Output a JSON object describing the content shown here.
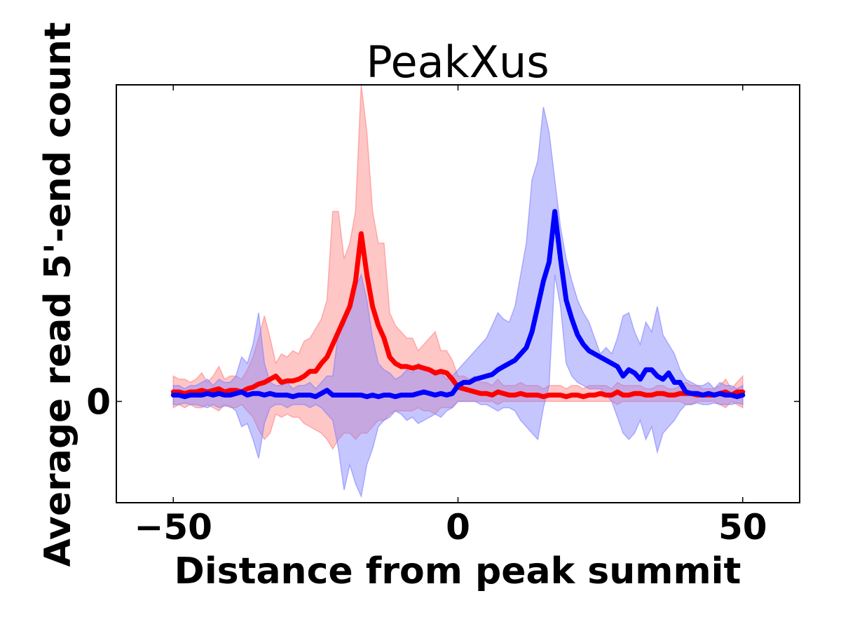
{
  "chart_data": {
    "type": "area",
    "title": "PeakXus",
    "xlabel": "Distance from peak summit",
    "ylabel": "Average read 5'-end count",
    "xlim": [
      -60,
      60
    ],
    "ylim": [
      -0.32,
      1.0
    ],
    "x_ticks": [
      -50,
      0,
      50
    ],
    "x_tick_labels": [
      "−50",
      "0",
      "50"
    ],
    "y_ticks": [
      0
    ],
    "y_tick_labels": [
      "0"
    ],
    "grid": false,
    "x": [
      -50,
      -49,
      -48,
      -47,
      -46,
      -45,
      -44,
      -43,
      -42,
      -41,
      -40,
      -39,
      -38,
      -37,
      -36,
      -35,
      -34,
      -33,
      -32,
      -31,
      -30,
      -29,
      -28,
      -27,
      -26,
      -25,
      -24,
      -23,
      -22,
      -21,
      -20,
      -19,
      -18,
      -17,
      -16,
      -15,
      -14,
      -13,
      -12,
      -11,
      -10,
      -9,
      -8,
      -7,
      -6,
      -5,
      -4,
      -3,
      -2,
      -1,
      0,
      1,
      2,
      3,
      4,
      5,
      6,
      7,
      8,
      9,
      10,
      11,
      12,
      13,
      14,
      15,
      16,
      17,
      18,
      19,
      20,
      21,
      22,
      23,
      24,
      25,
      26,
      27,
      28,
      29,
      30,
      31,
      32,
      33,
      34,
      35,
      36,
      37,
      38,
      39,
      40,
      41,
      42,
      43,
      44,
      45,
      46,
      47,
      48,
      49,
      50
    ],
    "series": [
      {
        "color": "#ff0000",
        "band_color": "#ff8080",
        "values": [
          0.03,
          0.03,
          0.025,
          0.03,
          0.03,
          0.035,
          0.03,
          0.035,
          0.04,
          0.03,
          0.035,
          0.035,
          0.03,
          0.04,
          0.045,
          0.055,
          0.06,
          0.07,
          0.08,
          0.06,
          0.065,
          0.065,
          0.07,
          0.08,
          0.095,
          0.095,
          0.12,
          0.14,
          0.18,
          0.22,
          0.26,
          0.3,
          0.38,
          0.53,
          0.4,
          0.3,
          0.24,
          0.2,
          0.14,
          0.12,
          0.11,
          0.11,
          0.105,
          0.11,
          0.105,
          0.1,
          0.09,
          0.095,
          0.09,
          0.07,
          0.045,
          0.04,
          0.035,
          0.03,
          0.025,
          0.025,
          0.02,
          0.03,
          0.025,
          0.02,
          0.02,
          0.025,
          0.02,
          0.02,
          0.02,
          0.015,
          0.02,
          0.02,
          0.02,
          0.015,
          0.02,
          0.02,
          0.015,
          0.02,
          0.02,
          0.025,
          0.02,
          0.02,
          0.03,
          0.02,
          0.02,
          0.025,
          0.025,
          0.02,
          0.02,
          0.025,
          0.025,
          0.02,
          0.02,
          0.025,
          0.025,
          0.025,
          0.02,
          0.02,
          0.02,
          0.02,
          0.025,
          0.03,
          0.02,
          0.03,
          0.03
        ],
        "upper": [
          0.08,
          0.07,
          0.07,
          0.06,
          0.07,
          0.09,
          0.06,
          0.08,
          0.11,
          0.07,
          0.08,
          0.08,
          0.07,
          0.1,
          0.14,
          0.2,
          0.27,
          0.2,
          0.12,
          0.15,
          0.14,
          0.16,
          0.15,
          0.19,
          0.2,
          0.23,
          0.26,
          0.32,
          0.6,
          0.6,
          0.45,
          0.5,
          0.6,
          1.0,
          0.85,
          0.6,
          0.5,
          0.5,
          0.28,
          0.24,
          0.22,
          0.2,
          0.2,
          0.16,
          0.18,
          0.2,
          0.22,
          0.16,
          0.16,
          0.13,
          0.08,
          0.08,
          0.07,
          0.08,
          0.06,
          0.06,
          0.05,
          0.07,
          0.05,
          0.05,
          0.05,
          0.06,
          0.05,
          0.05,
          0.05,
          0.04,
          0.05,
          0.05,
          0.05,
          0.04,
          0.05,
          0.05,
          0.04,
          0.05,
          0.05,
          0.05,
          0.05,
          0.04,
          0.06,
          0.05,
          0.05,
          0.05,
          0.05,
          0.04,
          0.04,
          0.05,
          0.05,
          0.04,
          0.04,
          0.05,
          0.06,
          0.05,
          0.05,
          0.04,
          0.04,
          0.04,
          0.05,
          0.07,
          0.04,
          0.06,
          0.08
        ],
        "lower": [
          -0.02,
          -0.01,
          -0.02,
          -0.01,
          -0.02,
          -0.02,
          -0.01,
          -0.02,
          -0.03,
          -0.01,
          -0.02,
          -0.02,
          -0.01,
          -0.03,
          -0.05,
          -0.09,
          -0.12,
          -0.1,
          -0.04,
          -0.05,
          -0.04,
          -0.05,
          -0.05,
          -0.07,
          -0.08,
          -0.09,
          -0.1,
          -0.12,
          -0.15,
          -0.12,
          -0.1,
          -0.1,
          -0.12,
          -0.1,
          -0.1,
          -0.08,
          -0.06,
          -0.06,
          -0.04,
          -0.03,
          -0.03,
          -0.03,
          -0.03,
          -0.02,
          -0.03,
          -0.03,
          -0.04,
          -0.02,
          -0.02,
          -0.02,
          0.0,
          0.0,
          0.0,
          0.0,
          0.0,
          0.0,
          0.0,
          -0.01,
          0.0,
          0.0,
          0.0,
          0.0,
          0.0,
          0.0,
          0.0,
          0.0,
          0.0,
          0.0,
          0.0,
          0.0,
          0.0,
          0.0,
          0.0,
          0.0,
          0.0,
          0.0,
          0.0,
          0.0,
          -0.01,
          0.0,
          0.0,
          0.0,
          0.0,
          0.0,
          0.0,
          0.0,
          0.0,
          0.0,
          0.0,
          0.0,
          -0.01,
          -0.01,
          0.0,
          0.0,
          0.0,
          0.0,
          -0.01,
          -0.02,
          0.0,
          -0.01,
          -0.02
        ]
      },
      {
        "color": "#0000ff",
        "band_color": "#8080ff",
        "values": [
          0.02,
          0.02,
          0.015,
          0.02,
          0.02,
          0.02,
          0.025,
          0.02,
          0.025,
          0.02,
          0.02,
          0.025,
          0.03,
          0.02,
          0.025,
          0.025,
          0.02,
          0.025,
          0.02,
          0.02,
          0.02,
          0.015,
          0.02,
          0.02,
          0.02,
          0.015,
          0.025,
          0.035,
          0.02,
          0.02,
          0.02,
          0.02,
          0.02,
          0.02,
          0.015,
          0.02,
          0.015,
          0.02,
          0.02,
          0.015,
          0.02,
          0.02,
          0.02,
          0.025,
          0.03,
          0.025,
          0.02,
          0.025,
          0.02,
          0.025,
          0.05,
          0.06,
          0.06,
          0.07,
          0.075,
          0.08,
          0.085,
          0.1,
          0.11,
          0.12,
          0.13,
          0.15,
          0.17,
          0.22,
          0.3,
          0.38,
          0.44,
          0.6,
          0.45,
          0.32,
          0.26,
          0.21,
          0.18,
          0.16,
          0.15,
          0.14,
          0.13,
          0.12,
          0.11,
          0.08,
          0.1,
          0.09,
          0.07,
          0.1,
          0.1,
          0.08,
          0.07,
          0.09,
          0.06,
          0.06,
          0.03,
          0.025,
          0.025,
          0.02,
          0.025,
          0.02,
          0.025,
          0.02,
          0.02,
          0.015,
          0.02
        ],
        "upper": [
          0.05,
          0.05,
          0.04,
          0.05,
          0.05,
          0.06,
          0.07,
          0.05,
          0.07,
          0.06,
          0.06,
          0.08,
          0.14,
          0.12,
          0.18,
          0.28,
          0.12,
          0.06,
          0.05,
          0.05,
          0.06,
          0.04,
          0.05,
          0.05,
          0.06,
          0.04,
          0.06,
          0.08,
          0.08,
          0.22,
          0.24,
          0.3,
          0.36,
          0.4,
          0.32,
          0.2,
          0.12,
          0.1,
          0.09,
          0.07,
          0.08,
          0.1,
          0.09,
          0.12,
          0.11,
          0.1,
          0.08,
          0.09,
          0.07,
          0.08,
          0.1,
          0.12,
          0.14,
          0.16,
          0.18,
          0.2,
          0.24,
          0.28,
          0.26,
          0.25,
          0.3,
          0.4,
          0.5,
          0.7,
          0.76,
          0.93,
          0.85,
          0.7,
          0.55,
          0.45,
          0.38,
          0.32,
          0.28,
          0.25,
          0.2,
          0.15,
          0.17,
          0.15,
          0.2,
          0.27,
          0.28,
          0.22,
          0.18,
          0.25,
          0.22,
          0.3,
          0.21,
          0.18,
          0.15,
          0.1,
          0.07,
          0.06,
          0.05,
          0.05,
          0.06,
          0.04,
          0.06,
          0.05,
          0.05,
          0.04,
          0.05
        ],
        "lower": [
          -0.01,
          -0.01,
          -0.005,
          -0.01,
          -0.01,
          -0.015,
          -0.02,
          -0.01,
          -0.02,
          -0.015,
          -0.015,
          -0.03,
          -0.08,
          -0.07,
          -0.12,
          -0.18,
          -0.07,
          -0.02,
          -0.01,
          -0.01,
          -0.02,
          -0.01,
          -0.01,
          -0.01,
          -0.02,
          -0.01,
          -0.02,
          -0.04,
          -0.06,
          -0.15,
          -0.28,
          -0.2,
          -0.26,
          -0.3,
          -0.2,
          -0.15,
          -0.08,
          -0.06,
          -0.05,
          -0.03,
          -0.04,
          -0.06,
          -0.05,
          -0.07,
          -0.06,
          -0.05,
          -0.04,
          -0.05,
          -0.03,
          -0.02,
          0.0,
          0.0,
          0.0,
          0.0,
          -0.01,
          -0.01,
          -0.02,
          -0.03,
          -0.02,
          -0.02,
          -0.03,
          -0.06,
          -0.08,
          -0.1,
          -0.12,
          -0.02,
          0.05,
          0.4,
          0.3,
          0.12,
          0.08,
          0.06,
          0.05,
          0.04,
          0.04,
          0.04,
          0.02,
          0.0,
          -0.05,
          -0.1,
          -0.12,
          -0.1,
          -0.06,
          -0.12,
          -0.08,
          -0.16,
          -0.1,
          -0.08,
          -0.06,
          -0.03,
          -0.01,
          -0.01,
          -0.005,
          -0.01,
          -0.01,
          -0.005,
          -0.01,
          -0.01,
          -0.01,
          -0.005,
          -0.01
        ]
      }
    ]
  }
}
